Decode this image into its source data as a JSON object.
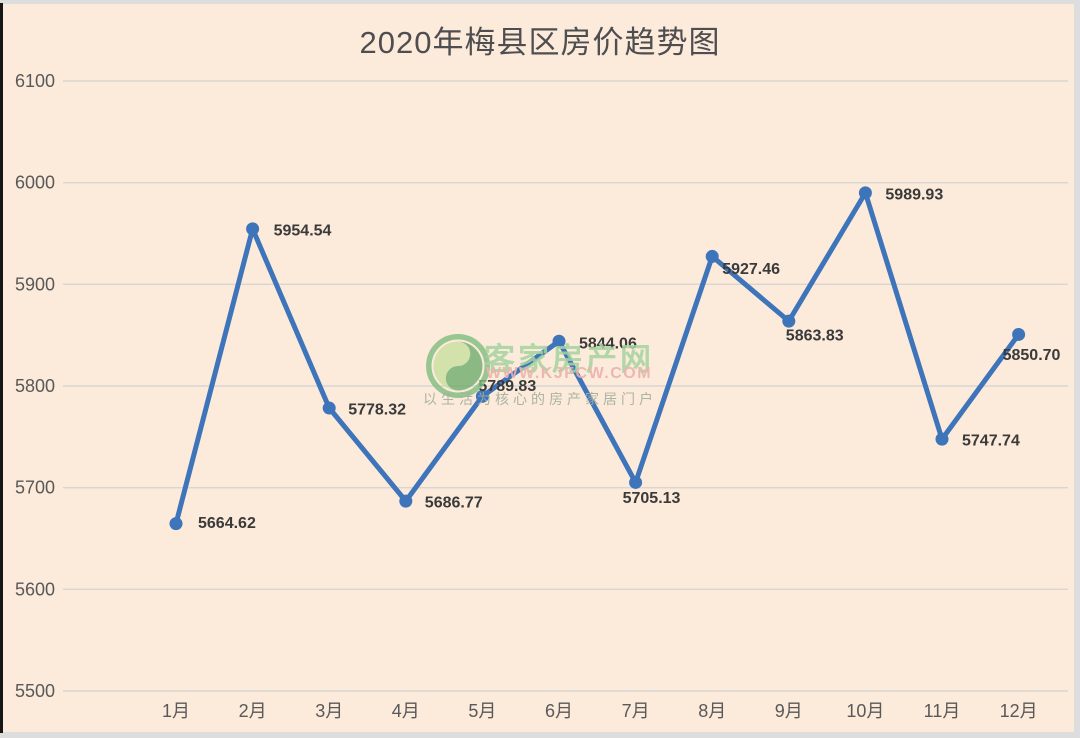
{
  "page": {
    "background_color": "#fceadb",
    "frame_color": "#dedddd",
    "left_strip_color": "#161616"
  },
  "chart_data": {
    "type": "line",
    "title": "2020年梅县区房价趋势图",
    "categories": [
      "1月",
      "2月",
      "3月",
      "4月",
      "5月",
      "6月",
      "7月",
      "8月",
      "9月",
      "10月",
      "11月",
      "12月"
    ],
    "values": [
      5664.62,
      5954.54,
      5778.32,
      5686.77,
      5789.83,
      5844.06,
      5705.13,
      5927.46,
      5863.83,
      5989.93,
      5747.74,
      5850.7
    ],
    "data_labels": [
      "5664.62",
      "5954.54",
      "5778.32",
      "5686.77",
      "5789.83",
      "5844.06",
      "5705.13",
      "5927.46",
      "5863.83",
      "5989.93",
      "5747.74",
      "5850.70"
    ],
    "yticks": [
      6100,
      6000,
      5900,
      5800,
      5700,
      5600,
      5500
    ],
    "ylim": [
      5500,
      6100
    ],
    "xlabel": "",
    "ylabel": "",
    "grid": true,
    "legend": "none",
    "line_color": "#3d74ba",
    "marker_color": "#3d74ba",
    "data_label_color": "#3a3a3a",
    "axis_text_color": "#595959",
    "gridline_color": "#d8d6d3",
    "title_color": "#4e4e50"
  },
  "watermark": {
    "logo": "kjfcw-swirl-logo",
    "site_name": "客家房产网",
    "url": "WWW.KJFCW.COM",
    "slogan": "以生活为核心的房产家居门户",
    "site_name_color": "#a5d4a0",
    "url_color": "#ecb2ac",
    "slogan_color": "#a3af9d",
    "logo_ring_color": "#7fbe7f",
    "logo_swirl_dark": "#6fae6f",
    "logo_swirl_light": "#c9dfa0"
  }
}
